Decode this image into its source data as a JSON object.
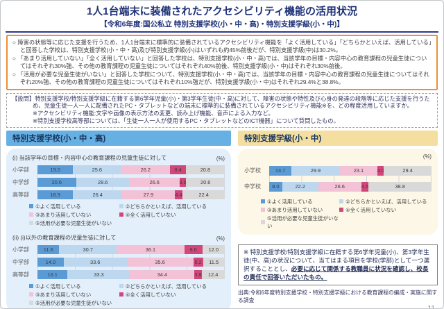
{
  "header": {
    "title": "1人1台端末に装備されたアクセシビリティ機能の活用状況",
    "subtitle": "【令和6年度:国公私立 特別支援学校(小・中・高)・特別支援学級(小・中)】"
  },
  "summary": {
    "bullets": [
      "○ 障害の状態等に応じた支援を行うため、1人1台端末に標準的に装備されているアクセシビリティ機能を「よく活用している」「どちらかといえば、活用している」と回答した学校は、特別支援学校(小・中・高)及び特別支援学級(小)はいずれも約45%前後だが、特別支援学級(中)は30.2%。",
      "○ 「あまり活用していない」「全く活用していない」と回答した学校は、特別支援学校(小・中・高)では、当該学年の目標・内容中心の教育課程の児童生徒についてはそれぞれ30%強、その他の教育課程の児童生徒についてはそれぞれ40%前後、特別支援学級(小・中)はそれぞれ30%前後。",
      "○ 「活用が必要な児童生徒がいない」と回答した学校について、特別支援学校(小・中・高)では、当該学年の目標・内容中心の教育課程の児童生徒についてはそれぞれ20%強、その他の教育課程の児童生徒についてはそれぞれ10%強だが、特別支援学級(小・中)はそれぞれ29.4%と38.8%。"
    ]
  },
  "question": {
    "main": "【設問】特別支援学校/特別支援学級に在籍する第6学年児童(小)・第3学年生徒(中・高)に対して、障害の状態や特性及び心身の発達の段階等に応じた支援を行うため、児童生徒一人一人に配備されたPC・タブレットなどの端末に標準的に装備されているアクセシビリティ機能※を、どの程度活用していますか。",
    "note1": "※アクセシビリティ機能:文字や画像の表示方法の変更、読み上げ機能、音声による入力など。",
    "note2": "※特別支援学校高等部については、「生徒一人一人が使用するPC・タブレットなどのICT機器」について質問したもの。"
  },
  "left_panel": {
    "title": "特別支援学校(小・中・高)"
  },
  "right_panel": {
    "title": "特別支援学級(小・中)"
  },
  "legend": {
    "items": [
      {
        "label": "①よく活用している",
        "color": "#5b9bd5"
      },
      {
        "label": "②どちらかといえば、活用している",
        "color": "#bdd7ee"
      },
      {
        "label": "③あまり活用していない",
        "color": "#f3c2d6"
      },
      {
        "label": "④全く活用していない",
        "color": "#d2477b"
      },
      {
        "label": "⑤活用が必要な児童生徒がいない",
        "color": "#d9d9d9"
      }
    ]
  },
  "chart_data": [
    {
      "type": "bar",
      "orientation": "horizontal-stacked",
      "title": "(i) 当該学年の目標・内容中心の教育課程の児童生徒に対して",
      "unit": "(%)",
      "xlim": [
        0,
        100
      ],
      "categories": [
        "小学部",
        "中学部",
        "高等部"
      ],
      "series": [
        {
          "name": "①よく活用している",
          "values": [
            19.0,
            20.6,
            18.9
          ]
        },
        {
          "name": "②どちらかといえば、活用している",
          "values": [
            25.6,
            28.6,
            26.4
          ]
        },
        {
          "name": "③あまり活用していない",
          "values": [
            26.2,
            26.6,
            27.9
          ]
        },
        {
          "name": "④全く活用していない",
          "values": [
            8.4,
            3.6,
            4.4
          ]
        },
        {
          "name": "⑤活用が必要な児童生徒がいない",
          "values": [
            20.8,
            20.6,
            22.4
          ]
        }
      ]
    },
    {
      "type": "bar",
      "orientation": "horizontal-stacked",
      "title": "(ii) (i)以外の教育課程の児童生徒に対して",
      "unit": "(%)",
      "xlim": [
        0,
        100
      ],
      "categories": [
        "小学部",
        "中学部",
        "高等部"
      ],
      "series": [
        {
          "name": "①よく活用している",
          "values": [
            11.6,
            14.0,
            16.1
          ]
        },
        {
          "name": "②どちらかといえば、活用している",
          "values": [
            30.7,
            33.6,
            33.3
          ]
        },
        {
          "name": "③あまり活用していない",
          "values": [
            36.1,
            35.6,
            34.4
          ]
        },
        {
          "name": "④全く活用していない",
          "values": [
            9.6,
            5.2,
            3.8
          ]
        },
        {
          "name": "⑤活用が必要な児童生徒がいない",
          "values": [
            12.0,
            11.5,
            12.4
          ]
        }
      ]
    },
    {
      "type": "bar",
      "orientation": "horizontal-stacked",
      "title": "",
      "unit": "(%)",
      "xlim": [
        0,
        100
      ],
      "categories": [
        "小学校",
        "中学校"
      ],
      "series": [
        {
          "name": "①よく活用している",
          "values": [
            13.7,
            8.0
          ]
        },
        {
          "name": "②どちらかといえば、活用している",
          "values": [
            29.9,
            22.2
          ]
        },
        {
          "name": "③あまり活用していない",
          "values": [
            23.1,
            26.6
          ]
        },
        {
          "name": "④全く活用していない",
          "values": [
            4.0,
            4.5
          ]
        },
        {
          "name": "⑤活用が必要な児童生徒がいない",
          "values": [
            29.4,
            38.8
          ]
        }
      ]
    }
  ],
  "note_box": {
    "plain": "※ 特別支援学校/特別支援学級に在籍する第6学年児童(小)、第3学年生徒(中、高)の状況について、当てはまる項目を学校(学部)として一つ選択することとし、",
    "emphasis": "必要に応じて関係する教職員に状況を確認し、校長の責任で回答いただいたもの。"
  },
  "source": "出典:令和6年度特別支援学校・特別支援学級における教育課程の編成・実施に関する調査",
  "page_number": "11"
}
